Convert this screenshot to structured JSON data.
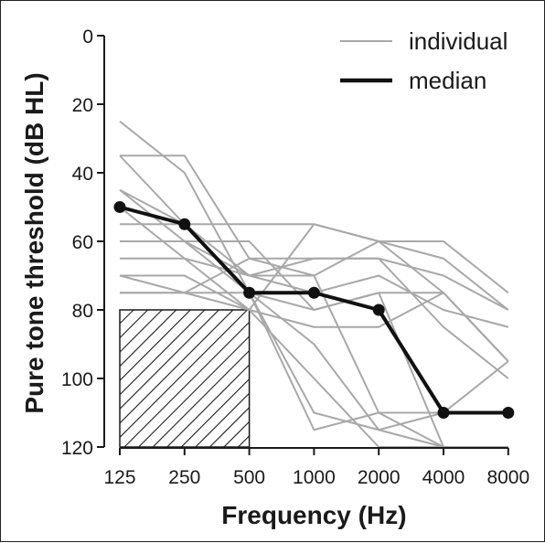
{
  "chart_data": {
    "type": "line",
    "xlabel": "Frequency (Hz)",
    "ylabel": "Pure tone threshold (dB HL)",
    "x_categories": [
      "125",
      "250",
      "500",
      "1000",
      "2000",
      "4000",
      "8000"
    ],
    "y_ticks": [
      0,
      20,
      40,
      60,
      80,
      100,
      120
    ],
    "ylim": [
      0,
      120
    ],
    "y_inverted": true,
    "grid": false,
    "legend_placement": "top-right",
    "legend": [
      {
        "label": "individual",
        "style": "thin-gray"
      },
      {
        "label": "median",
        "style": "thick-black"
      }
    ],
    "colors": {
      "individual": "#a8a8a8",
      "median": "#111111",
      "axis": "#1a1a1a"
    },
    "shaded_region": {
      "pattern": "diagonal-hatch",
      "x_from": "125",
      "x_to": "500",
      "y_from": 80,
      "y_to": 120
    },
    "median": [
      50,
      55,
      75,
      75,
      80,
      110,
      110
    ],
    "individual": [
      [
        25,
        40,
        75,
        80,
        75,
        120,
        null
      ],
      [
        35,
        35,
        65,
        70,
        110,
        120,
        120
      ],
      [
        35,
        55,
        75,
        90,
        115,
        120,
        120
      ],
      [
        45,
        60,
        75,
        110,
        115,
        110,
        95
      ],
      [
        45,
        55,
        70,
        70,
        60,
        60,
        75
      ],
      [
        50,
        65,
        80,
        55,
        60,
        75,
        95
      ],
      [
        55,
        55,
        55,
        55,
        60,
        65,
        80
      ],
      [
        60,
        60,
        60,
        80,
        75,
        75,
        95
      ],
      [
        60,
        60,
        70,
        65,
        65,
        70,
        80
      ],
      [
        65,
        65,
        70,
        75,
        70,
        80,
        85
      ],
      [
        70,
        70,
        80,
        85,
        85,
        75,
        95
      ],
      [
        70,
        75,
        80,
        100,
        120,
        120,
        120
      ],
      [
        75,
        75,
        65,
        65,
        65,
        85,
        100
      ],
      [
        75,
        75,
        75,
        115,
        110,
        110,
        110
      ]
    ]
  }
}
